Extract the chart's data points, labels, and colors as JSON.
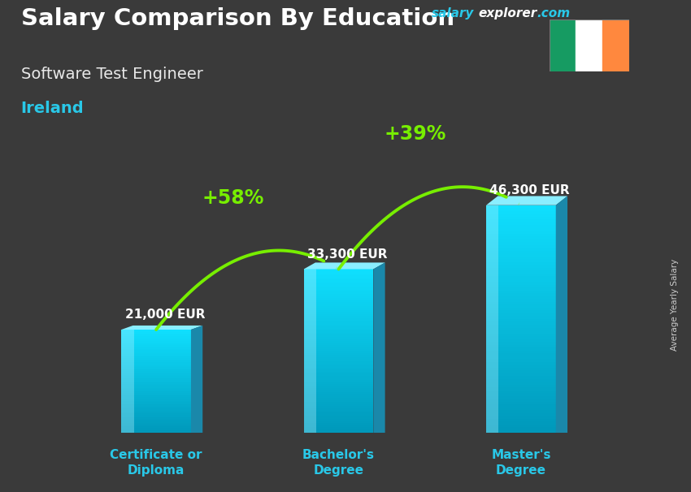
{
  "title_main": "Salary Comparison By Education",
  "title_sub": "Software Test Engineer",
  "title_country": "Ireland",
  "website_salary": "salary",
  "website_explorer": "explorer",
  "website_com": ".com",
  "salary_label": "Average Yearly Salary",
  "categories": [
    "Certificate or\nDiploma",
    "Bachelor's\nDegree",
    "Master's\nDegree"
  ],
  "values": [
    21000,
    33300,
    46300
  ],
  "value_labels": [
    "21,000 EUR",
    "33,300 EUR",
    "46,300 EUR"
  ],
  "pct_labels": [
    "+58%",
    "+39%"
  ],
  "bar_color_main": "#29c8e8",
  "bar_color_light": "#5de0f5",
  "bar_color_dark": "#1890aa",
  "bar_color_side": "#1a7a99",
  "background_color": "#3a3a3a",
  "title_color": "#ffffff",
  "subtitle_color": "#e8e8e8",
  "country_color": "#29c8e8",
  "value_label_color": "#ffffff",
  "pct_color": "#77ee00",
  "category_color": "#29c8e8",
  "arrow_color": "#77ee00",
  "website_salary_color": "#29c8e8",
  "website_explorer_color": "#ffffff",
  "website_com_color": "#29c8e8",
  "bar_width": 0.42,
  "bar_positions": [
    1.0,
    2.1,
    3.2
  ],
  "ylim": [
    0,
    58000
  ],
  "plot_xlim": [
    0.35,
    3.85
  ],
  "flag_colors": [
    "#169b62",
    "#ffffff",
    "#ff883e"
  ]
}
